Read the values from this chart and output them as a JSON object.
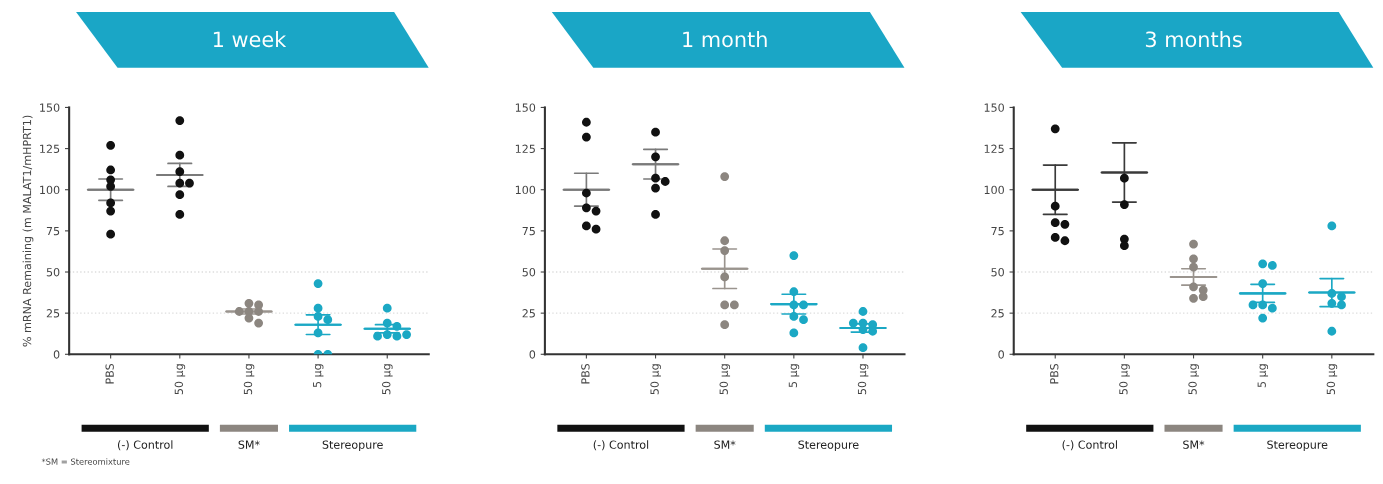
{
  "chart_data": [
    {
      "type": "scatter",
      "title": "1 week",
      "ylabel": "% mRNA Remaining (m MALAT1/mHPRT1)",
      "categories": [
        "PBS",
        "50 µg",
        "50 µg",
        "5 µg",
        "50 µg"
      ],
      "ylim": [
        0,
        150
      ],
      "yticks": [
        0,
        25,
        50,
        75,
        100,
        125,
        150
      ],
      "grid": false,
      "legend": false,
      "ref_lines": [
        {
          "axis": "y",
          "value": 25,
          "line_style": "dotted",
          "color": "#dddddd"
        },
        {
          "axis": "y",
          "value": 50,
          "line_style": "dotted",
          "color": "#dddddd"
        }
      ],
      "annotations": [
        "(-) Control",
        "SM*",
        "Stereopure",
        "*SM = Stereomixture"
      ],
      "series": [
        {
          "type": "scatter",
          "marker": "circle",
          "colors": [
            "#111111",
            "#111111",
            "#8c8680",
            "#1ba8c4",
            "#1ba8c4"
          ],
          "values": [
            127,
            142,
            31,
            43,
            28
          ]
        },
        {
          "type": "scatter",
          "marker": "circle",
          "colors": [
            "#111111",
            "#111111",
            "#8c8680",
            "#1ba8c4",
            "#1ba8c4"
          ],
          "values": [
            112,
            121,
            30,
            28,
            19
          ]
        },
        {
          "type": "scatter",
          "marker": "circle",
          "colors": [
            "#111111",
            "#111111",
            "#8c8680",
            "#1ba8c4",
            "#1ba8c4"
          ],
          "values": [
            106,
            111,
            26,
            23,
            17
          ]
        },
        {
          "type": "scatter",
          "marker": "circle",
          "colors": [
            "#111111",
            "#111111",
            "#8c8680",
            "#1ba8c4",
            "#1ba8c4"
          ],
          "values": [
            102,
            104,
            26,
            21,
            12
          ]
        },
        {
          "type": "scatter",
          "marker": "circle",
          "colors": [
            "#111111",
            "#111111",
            "#8c8680",
            "#1ba8c4",
            "#1ba8c4"
          ],
          "values": [
            92,
            104,
            26,
            13,
            11
          ]
        },
        {
          "type": "scatter",
          "marker": "circle",
          "colors": [
            "#111111",
            "#111111",
            "#8c8680",
            "#1ba8c4",
            "#1ba8c4"
          ],
          "values": [
            87,
            97,
            22,
            0,
            11
          ]
        },
        {
          "type": "scatter",
          "marker": "circle",
          "colors": [
            "#111111",
            "#111111",
            "#8c8680",
            "#1ba8c4",
            "#1ba8c4"
          ],
          "values": [
            73,
            85,
            19,
            0,
            12
          ]
        },
        {
          "type": "box",
          "colors": [
            "#7a7a7a",
            "#7a7a7a",
            "#9a948e",
            "#1ba8c4",
            "#1ba8c4"
          ],
          "boxes": [
            {
              "low": 93.5,
              "q1": 100,
              "median": 100,
              "q3": 100,
              "high": 106.5
            },
            {
              "low": 102,
              "q1": 109,
              "median": 109,
              "q3": 109,
              "high": 116
            },
            {
              "low": 24.5,
              "q1": 26,
              "median": 26,
              "q3": 26,
              "high": 27.5
            },
            {
              "low": 12,
              "q1": 18,
              "median": 18,
              "q3": 18,
              "high": 24
            },
            {
              "low": 13,
              "q1": 15.5,
              "median": 15.5,
              "q3": 15.5,
              "high": 18
            }
          ]
        }
      ]
    },
    {
      "type": "scatter",
      "title": "1 month",
      "categories": [
        "PBS",
        "50 µg",
        "50 µg",
        "5 µg",
        "50 µg"
      ],
      "ylim": [
        0,
        150
      ],
      "yticks": [
        0,
        25,
        50,
        75,
        100,
        125,
        150
      ],
      "grid": false,
      "legend": false,
      "ref_lines": [
        {
          "axis": "y",
          "value": 25,
          "line_style": "dotted",
          "color": "#dddddd"
        },
        {
          "axis": "y",
          "value": 50,
          "line_style": "dotted",
          "color": "#dddddd"
        }
      ],
      "annotations": [
        "(-) Control",
        "SM*",
        "Stereopure"
      ],
      "series": [
        {
          "type": "scatter",
          "marker": "circle",
          "colors": [
            "#111111",
            "#111111",
            "#8c8680",
            "#1ba8c4",
            "#1ba8c4"
          ],
          "values": [
            141,
            135,
            108,
            60,
            26
          ]
        },
        {
          "type": "scatter",
          "marker": "circle",
          "colors": [
            "#111111",
            "#111111",
            "#8c8680",
            "#1ba8c4",
            "#1ba8c4"
          ],
          "values": [
            132,
            120,
            69,
            38,
            19
          ]
        },
        {
          "type": "scatter",
          "marker": "circle",
          "colors": [
            "#111111",
            "#111111",
            "#8c8680",
            "#1ba8c4",
            "#1ba8c4"
          ],
          "values": [
            98,
            107,
            63,
            30,
            18
          ]
        },
        {
          "type": "scatter",
          "marker": "circle",
          "colors": [
            "#111111",
            "#111111",
            "#8c8680",
            "#1ba8c4",
            "#1ba8c4"
          ],
          "values": [
            89,
            105,
            47,
            30,
            19
          ]
        },
        {
          "type": "scatter",
          "marker": "circle",
          "colors": [
            "#111111",
            "#111111",
            "#8c8680",
            "#1ba8c4",
            "#1ba8c4"
          ],
          "values": [
            87,
            101,
            30,
            23,
            15
          ]
        },
        {
          "type": "scatter",
          "marker": "circle",
          "colors": [
            "#111111",
            "#111111",
            "#8c8680",
            "#1ba8c4",
            "#1ba8c4"
          ],
          "values": [
            78,
            85,
            30,
            21,
            14
          ]
        },
        {
          "type": "scatter",
          "marker": "circle",
          "colors": [
            "#111111",
            "#111111",
            "#8c8680",
            "#1ba8c4",
            "#1ba8c4"
          ],
          "values": [
            76,
            null,
            18,
            13,
            4
          ]
        },
        {
          "type": "box",
          "colors": [
            "#7a7a7a",
            "#7a7a7a",
            "#9a948e",
            "#1ba8c4",
            "#1ba8c4"
          ],
          "boxes": [
            {
              "low": 90,
              "q1": 100,
              "median": 100,
              "q3": 100,
              "high": 110
            },
            {
              "low": 106.5,
              "q1": 115.5,
              "median": 115.5,
              "q3": 115.5,
              "high": 124.5
            },
            {
              "low": 40,
              "q1": 52,
              "median": 52,
              "q3": 52,
              "high": 64
            },
            {
              "low": 24.5,
              "q1": 30.5,
              "median": 30.5,
              "q3": 30.5,
              "high": 36.5
            },
            {
              "low": 13.5,
              "q1": 16,
              "median": 16,
              "q3": 16,
              "high": 18.5
            }
          ]
        }
      ]
    },
    {
      "type": "scatter",
      "title": "3 months",
      "categories": [
        "PBS",
        "50 µg",
        "50 µg",
        "5 µg",
        "50 µg"
      ],
      "ylim": [
        0,
        150
      ],
      "yticks": [
        0,
        25,
        50,
        75,
        100,
        125,
        150
      ],
      "grid": false,
      "legend": false,
      "ref_lines": [
        {
          "axis": "y",
          "value": 25,
          "line_style": "dotted",
          "color": "#dddddd"
        },
        {
          "axis": "y",
          "value": 50,
          "line_style": "dotted",
          "color": "#dddddd"
        }
      ],
      "annotations": [
        "(-) Control",
        "SM*",
        "Stereopure"
      ],
      "series": [
        {
          "type": "scatter",
          "marker": "circle",
          "colors": [
            "#111111",
            "#111111",
            "#8c8680",
            "#1ba8c4",
            "#1ba8c4"
          ],
          "values": [
            137,
            107,
            67,
            55,
            78
          ]
        },
        {
          "type": "scatter",
          "marker": "circle",
          "colors": [
            "#111111",
            "#111111",
            "#8c8680",
            "#1ba8c4",
            "#1ba8c4"
          ],
          "values": [
            90,
            91,
            58,
            54,
            37
          ]
        },
        {
          "type": "scatter",
          "marker": "circle",
          "colors": [
            "#111111",
            "#111111",
            "#8c8680",
            "#1ba8c4",
            "#1ba8c4"
          ],
          "values": [
            80,
            70,
            53,
            43,
            35
          ]
        },
        {
          "type": "scatter",
          "marker": "circle",
          "colors": [
            "#111111",
            "#111111",
            "#8c8680",
            "#1ba8c4",
            "#1ba8c4"
          ],
          "values": [
            79,
            66,
            41,
            30,
            31
          ]
        },
        {
          "type": "scatter",
          "marker": "circle",
          "colors": [
            "#111111",
            "#111111",
            "#8c8680",
            "#1ba8c4",
            "#1ba8c4"
          ],
          "values": [
            71,
            null,
            39,
            28,
            30
          ]
        },
        {
          "type": "scatter",
          "marker": "circle",
          "colors": [
            "#111111",
            "#111111",
            "#8c8680",
            "#1ba8c4",
            "#1ba8c4"
          ],
          "values": [
            69,
            null,
            34,
            30,
            14
          ]
        },
        {
          "type": "scatter",
          "marker": "circle",
          "colors": [
            "#111111",
            "#111111",
            "#8c8680",
            "#1ba8c4",
            "#1ba8c4"
          ],
          "values": [
            null,
            null,
            35,
            22,
            null
          ]
        },
        {
          "type": "box",
          "colors": [
            "#3a3a3a",
            "#3a3a3a",
            "#9a948e",
            "#1ba8c4",
            "#1ba8c4"
          ],
          "boxes": [
            {
              "low": 85,
              "q1": 100,
              "median": 100,
              "q3": 100,
              "high": 115
            },
            {
              "low": 92.5,
              "q1": 110.5,
              "median": 110.5,
              "q3": 110.5,
              "high": 128.5
            },
            {
              "low": 42,
              "q1": 47,
              "median": 47,
              "q3": 47,
              "high": 52
            },
            {
              "low": 31.5,
              "q1": 37,
              "median": 37,
              "q3": 37,
              "high": 42.5
            },
            {
              "low": 29,
              "q1": 37.5,
              "median": 37.5,
              "q3": 37.5,
              "high": 46
            }
          ]
        }
      ]
    }
  ]
}
